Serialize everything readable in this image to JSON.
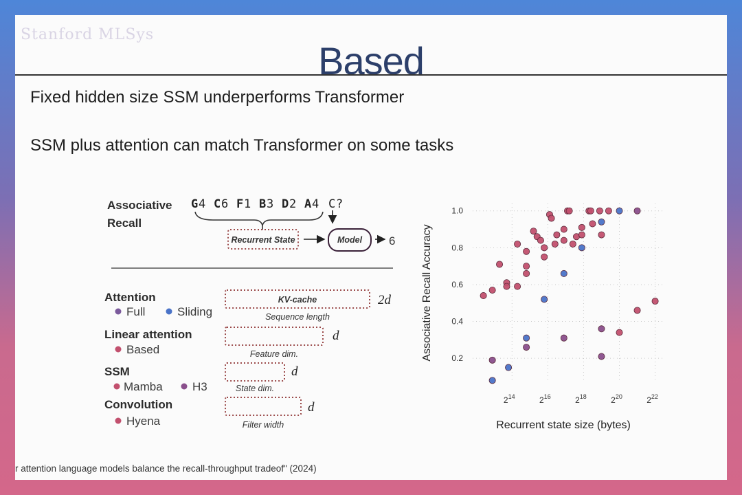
{
  "slide": {
    "title": "Based",
    "watermark": "Stanford MLSys",
    "bullets": [
      "Fixed hidden size SSM underperforms Transformer",
      "SSM plus attention can match Transformer on some tasks"
    ],
    "citation": "r attention language models balance the recall-throughput tradeof\" (2024)"
  },
  "diagram": {
    "task_title": [
      "Associative",
      "Recall"
    ],
    "sequence": [
      "G",
      "4",
      "C",
      "6",
      "F",
      "1",
      "B",
      "3",
      "D",
      "2",
      "A",
      "4",
      "C",
      "?"
    ],
    "recurrent_state": "Recurrent State",
    "model": "Model",
    "output": "6",
    "sections": [
      {
        "title": "Attention",
        "legend": [
          {
            "label": "Full",
            "color": "#7b5a9c"
          },
          {
            "label": "Sliding",
            "color": "#4a73c8"
          }
        ],
        "box_label": "KV-cache",
        "caption": "Sequence length",
        "size": "2d"
      },
      {
        "title": "Linear attention",
        "legend": [
          {
            "label": "Based",
            "color": "#c2506e"
          }
        ],
        "box_label": "",
        "caption": "Feature dim.",
        "size": "d"
      },
      {
        "title": "SSM",
        "legend": [
          {
            "label": "Mamba",
            "color": "#c2506e"
          },
          {
            "label": "H3",
            "color": "#8a4f8c"
          }
        ],
        "box_label": "",
        "caption": "State dim.",
        "size": "d"
      },
      {
        "title": "Convolution",
        "legend": [
          {
            "label": "Hyena",
            "color": "#c2506e"
          }
        ],
        "box_label": "",
        "caption": "Filter width",
        "size": "d"
      }
    ]
  },
  "chart_data": {
    "type": "scatter",
    "xlabel": "Recurrent state size (bytes)",
    "ylabel": "Associative Recall Accuracy",
    "xscale": "log2",
    "x_ticks": [
      {
        "base": "2",
        "exp": "14",
        "value": 14
      },
      {
        "base": "2",
        "exp": "16",
        "value": 16
      },
      {
        "base": "2",
        "exp": "18",
        "value": 18
      },
      {
        "base": "2",
        "exp": "20",
        "value": 20
      },
      {
        "base": "2",
        "exp": "22",
        "value": 22
      }
    ],
    "y_ticks": [
      "0.2",
      "0.4",
      "0.6",
      "0.8",
      "1.0"
    ],
    "xlim": [
      11.8,
      22.4
    ],
    "ylim": [
      0.07,
      1.04
    ],
    "grid": true,
    "series": [
      {
        "color": "#c2506e",
        "points": [
          [
            12.4,
            0.54
          ],
          [
            12.9,
            0.57
          ],
          [
            13.3,
            0.71
          ],
          [
            13.7,
            0.61
          ],
          [
            13.7,
            0.59
          ],
          [
            14.3,
            0.59
          ],
          [
            14.3,
            0.82
          ],
          [
            14.8,
            0.78
          ],
          [
            14.8,
            0.7
          ],
          [
            14.8,
            0.66
          ],
          [
            15.2,
            0.89
          ],
          [
            15.4,
            0.86
          ],
          [
            15.6,
            0.84
          ],
          [
            15.8,
            0.75
          ],
          [
            15.8,
            0.8
          ],
          [
            16.1,
            0.98
          ],
          [
            16.2,
            0.96
          ],
          [
            16.4,
            0.82
          ],
          [
            16.5,
            0.87
          ],
          [
            16.9,
            0.9
          ],
          [
            16.9,
            0.84
          ],
          [
            17.1,
            1.0
          ],
          [
            17.2,
            1.0
          ],
          [
            17.4,
            0.82
          ],
          [
            17.6,
            0.86
          ],
          [
            17.9,
            0.87
          ],
          [
            17.9,
            0.91
          ],
          [
            18.3,
            1.0
          ],
          [
            18.4,
            1.0
          ],
          [
            18.5,
            0.93
          ],
          [
            18.9,
            1.0
          ],
          [
            19.0,
            0.87
          ],
          [
            19.4,
            1.0
          ],
          [
            22.0,
            0.51
          ],
          [
            21.0,
            0.46
          ],
          [
            20.0,
            0.34
          ]
        ]
      },
      {
        "color": "#8a4f8c",
        "points": [
          [
            12.9,
            0.19
          ],
          [
            14.8,
            0.26
          ],
          [
            16.9,
            0.31
          ],
          [
            19.0,
            0.36
          ],
          [
            19.0,
            0.21
          ],
          [
            21.0,
            1.0
          ]
        ]
      },
      {
        "color": "#4a73c8",
        "points": [
          [
            12.9,
            0.08
          ],
          [
            13.8,
            0.15
          ],
          [
            14.8,
            0.31
          ],
          [
            15.8,
            0.52
          ],
          [
            16.9,
            0.66
          ],
          [
            17.9,
            0.8
          ],
          [
            19.0,
            0.94
          ],
          [
            20.0,
            1.0
          ]
        ]
      }
    ]
  }
}
